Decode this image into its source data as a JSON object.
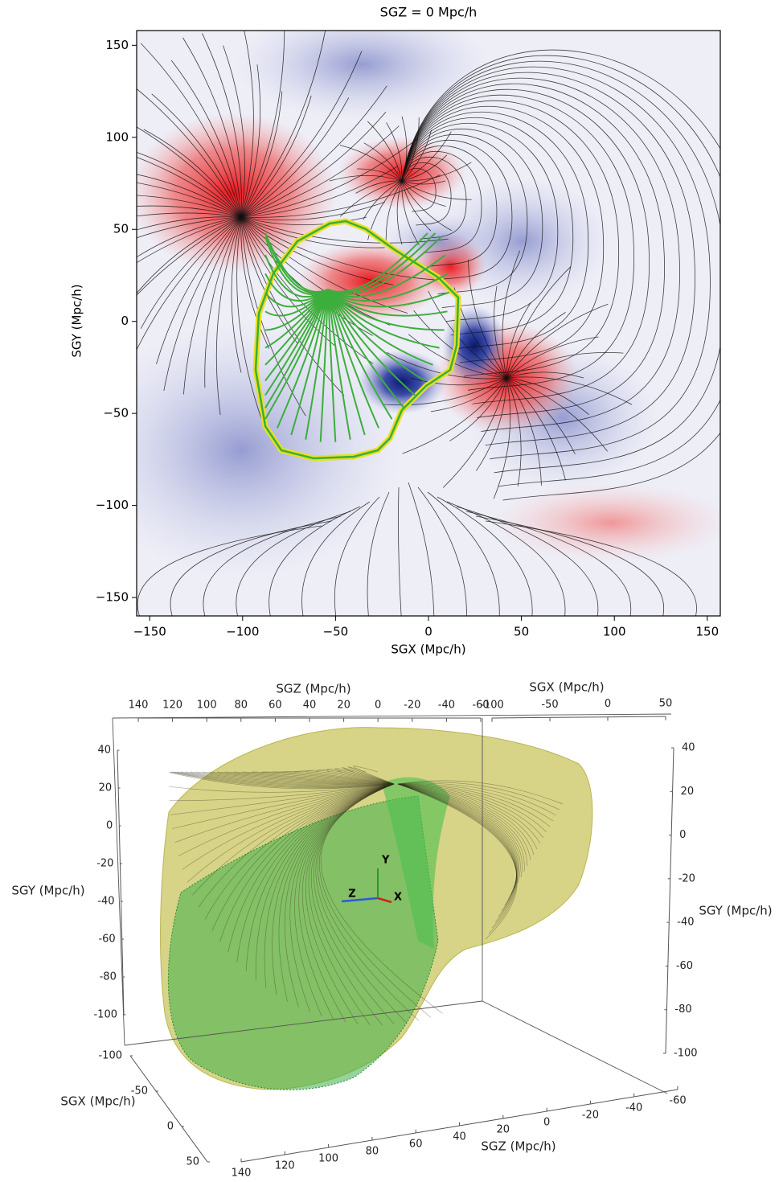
{
  "chart_data": [
    {
      "type": "field",
      "title": "SGZ = 0 Mpc/h",
      "x_label": "SGX (Mpc/h)",
      "y_label": "SGY (Mpc/h)",
      "xlim": [
        -157,
        157
      ],
      "ylim": [
        -160,
        158
      ],
      "xticks": [
        {
          "value": -150,
          "label": "−150"
        },
        {
          "value": -100,
          "label": "−100"
        },
        {
          "value": -50,
          "label": "−50"
        },
        0,
        50,
        100,
        150
      ],
      "yticks": [
        {
          "value": -150,
          "label": "−150"
        },
        {
          "value": -100,
          "label": "−100"
        },
        {
          "value": -50,
          "label": "−50"
        },
        0,
        50,
        100,
        150
      ]
    },
    {
      "type": "3d",
      "axes": [
        {
          "label": "SGZ (Mpc/h)",
          "lim": [
            140,
            -60
          ],
          "ticks": [
            140,
            120,
            100,
            80,
            60,
            40,
            20,
            0,
            -20,
            -40,
            -60
          ]
        },
        {
          "label": "SGX (Mpc/h)",
          "lim": [
            -100,
            50
          ],
          "ticks": [
            -100,
            -50,
            0,
            50
          ]
        },
        {
          "label": "SGY (Mpc/h)",
          "lim": [
            40,
            -100
          ],
          "ticks": [
            40,
            20,
            0,
            -20,
            -40,
            -60,
            -80,
            -100
          ]
        },
        {
          "label": "SGY (Mpc/h)",
          "lim": [
            40,
            -100
          ],
          "ticks": [
            40,
            20,
            0,
            -20,
            -40,
            -60,
            -80,
            -100
          ]
        },
        {
          "label": "SGX (Mpc/h)",
          "lim": [
            -100,
            50
          ],
          "ticks": [
            -100,
            -50,
            0,
            50
          ]
        },
        {
          "label": "SGZ (Mpc/h)",
          "lim": [
            140,
            -60
          ],
          "ticks": [
            140,
            120,
            100,
            80,
            60,
            40,
            20,
            0,
            -20,
            -40,
            -60
          ]
        }
      ],
      "orientation_labels": [
        "Y",
        "Z",
        "X"
      ]
    }
  ]
}
